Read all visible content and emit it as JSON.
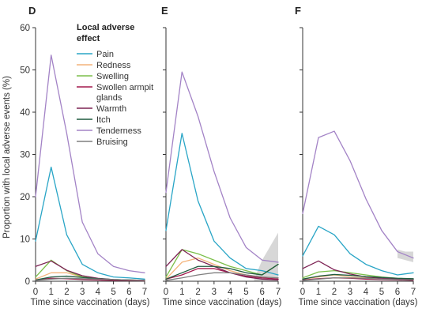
{
  "colors": {
    "Pain": "#29a5c6",
    "Redness": "#f4b37a",
    "Swelling": "#7cbf4a",
    "Swollen armpit glands": "#a3194d",
    "Warmth": "#7d2354",
    "Itch": "#1f5a3e",
    "Tenderness": "#a383c6",
    "Bruising": "#7f7f7f",
    "band": "#c9c9c9"
  },
  "ylabel": "Proportion with local adverse events (%)",
  "legend": {
    "title_lines": [
      "Local adverse",
      "effect"
    ],
    "entries": [
      {
        "name": "Pain",
        "lines": [
          "Pain"
        ]
      },
      {
        "name": "Redness",
        "lines": [
          "Redness"
        ]
      },
      {
        "name": "Swelling",
        "lines": [
          "Swelling"
        ]
      },
      {
        "name": "Swollen armpit glands",
        "lines": [
          "Swollen armpit",
          "glands"
        ]
      },
      {
        "name": "Warmth",
        "lines": [
          "Warmth"
        ]
      },
      {
        "name": "Itch",
        "lines": [
          "Itch"
        ]
      },
      {
        "name": "Tenderness",
        "lines": [
          "Tenderness"
        ]
      },
      {
        "name": "Bruising",
        "lines": [
          "Bruising"
        ]
      }
    ]
  },
  "chart_data": [
    {
      "type": "line",
      "panel": "D",
      "xlabel": "Time since vaccination (days)",
      "ylabel": "Proportion with local adverse events (%)",
      "x": [
        0,
        1,
        2,
        3,
        4,
        5,
        6,
        7
      ],
      "xlim": [
        0,
        7
      ],
      "ylim": [
        0,
        60
      ],
      "yticks": [
        0,
        10,
        20,
        30,
        40,
        50,
        60
      ],
      "series": [
        {
          "name": "Pain",
          "values": [
            9.5,
            27,
            11,
            4,
            2,
            1,
            0.8,
            0.5
          ]
        },
        {
          "name": "Redness",
          "values": [
            0.5,
            2,
            2,
            1,
            0.5,
            0.3,
            0.2,
            0.2
          ]
        },
        {
          "name": "Swelling",
          "values": [
            1,
            5,
            2.5,
            1,
            0.6,
            0.4,
            0.3,
            0.2
          ]
        },
        {
          "name": "Swollen armpit glands",
          "values": [
            0.3,
            0.7,
            0.6,
            0.4,
            0.3,
            0.2,
            0.2,
            0.1
          ]
        },
        {
          "name": "Warmth",
          "values": [
            3.5,
            4.8,
            2.6,
            1.3,
            0.7,
            0.4,
            0.3,
            0.2
          ]
        },
        {
          "name": "Itch",
          "values": [
            0.3,
            1,
            1.2,
            0.9,
            0.6,
            0.4,
            0.3,
            0.2
          ]
        },
        {
          "name": "Tenderness",
          "values": [
            20,
            53.5,
            35,
            14,
            6.5,
            3.5,
            2.5,
            2
          ]
        },
        {
          "name": "Bruising",
          "values": [
            0.2,
            0.5,
            0.7,
            0.6,
            0.5,
            0.4,
            0.3,
            0.2
          ]
        }
      ]
    },
    {
      "type": "line",
      "panel": "E",
      "xlabel": "Time since vaccination (days)",
      "x": [
        0,
        1,
        2,
        3,
        4,
        5,
        6,
        7
      ],
      "xlim": [
        0,
        7
      ],
      "ylim": [
        0,
        60
      ],
      "series": [
        {
          "name": "Pain",
          "values": [
            12,
            35,
            19,
            9.5,
            5.5,
            3,
            2.5,
            1.5
          ]
        },
        {
          "name": "Redness",
          "values": [
            0.5,
            4.5,
            5.5,
            4,
            2.5,
            1.5,
            1,
            0.8
          ]
        },
        {
          "name": "Swelling",
          "values": [
            1,
            7.5,
            6.5,
            5,
            3.5,
            2.5,
            1.5,
            4
          ]
        },
        {
          "name": "Swollen armpit glands",
          "values": [
            0.5,
            1.5,
            3,
            3,
            2,
            1.2,
            0.8,
            0.5
          ]
        },
        {
          "name": "Warmth",
          "values": [
            3.5,
            7.5,
            5,
            3.5,
            2,
            1,
            0.5,
            0.3
          ]
        },
        {
          "name": "Itch",
          "values": [
            0.5,
            2,
            3.5,
            3.5,
            3,
            2,
            1.5,
            4
          ]
        },
        {
          "name": "Tenderness",
          "values": [
            21,
            49.5,
            39,
            26,
            15,
            8,
            5,
            4.5
          ]
        },
        {
          "name": "Bruising",
          "values": [
            0.2,
            0.8,
            1.5,
            2,
            2,
            1.5,
            1,
            0.8
          ]
        }
      ],
      "band": {
        "x": [
          5.5,
          6,
          7
        ],
        "lower": [
          0,
          0,
          0
        ],
        "upper": [
          0.5,
          5,
          11.5
        ]
      }
    },
    {
      "type": "line",
      "panel": "F",
      "xlabel": "Time since vaccination (days)",
      "x": [
        0,
        1,
        2,
        3,
        4,
        5,
        6,
        7
      ],
      "xlim": [
        0,
        7
      ],
      "ylim": [
        0,
        60
      ],
      "series": [
        {
          "name": "Pain",
          "values": [
            6,
            13,
            11,
            6.5,
            4,
            2.5,
            1.5,
            2
          ]
        },
        {
          "name": "Redness",
          "values": [
            0.5,
            1,
            1.5,
            1,
            0.8,
            0.5,
            0.4,
            0.3
          ]
        },
        {
          "name": "Swelling",
          "values": [
            0.8,
            2.2,
            2.5,
            2,
            1.5,
            1,
            0.7,
            0.5
          ]
        },
        {
          "name": "Swollen armpit glands",
          "values": [
            0.3,
            0.6,
            0.8,
            0.7,
            0.5,
            0.4,
            0.3,
            0.2
          ]
        },
        {
          "name": "Warmth",
          "values": [
            3,
            4.8,
            2.7,
            1.7,
            1,
            0.7,
            0.5,
            0.4
          ]
        },
        {
          "name": "Itch",
          "values": [
            0.5,
            1.2,
            1.6,
            1.4,
            1.1,
            0.9,
            0.7,
            0.6
          ]
        },
        {
          "name": "Tenderness",
          "values": [
            16,
            34,
            35.5,
            28.5,
            19.5,
            12,
            7,
            5.5
          ]
        },
        {
          "name": "Bruising",
          "values": [
            0.2,
            0.5,
            0.8,
            0.8,
            0.7,
            0.5,
            0.4,
            0.3
          ]
        }
      ],
      "band": {
        "x": [
          6,
          6.5,
          7
        ],
        "lower": [
          5.5,
          5,
          4.5
        ],
        "upper": [
          7.5,
          7,
          7
        ]
      }
    }
  ]
}
